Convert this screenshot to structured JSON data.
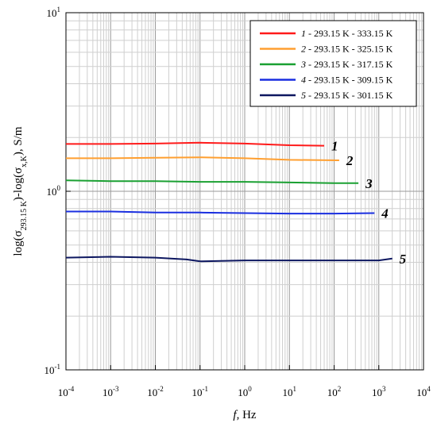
{
  "chart_data": {
    "type": "line",
    "xscale": "log",
    "yscale": "log",
    "xlim": [
      0.0001,
      10000
    ],
    "ylim": [
      0.1,
      10
    ],
    "grid": true,
    "legend_position": "top-right",
    "xlabel": {
      "italic": "f",
      "rest": ", Hz"
    },
    "ylabel": {
      "main": "log(σ",
      "sub1": "293.15 K",
      "mid": ")-log(σ",
      "sub2": "x,K",
      "end": "), S/m"
    },
    "x_ticks": [
      {
        "base": "10",
        "exp": "-4",
        "value": 0.0001
      },
      {
        "base": "10",
        "exp": "-3",
        "value": 0.001
      },
      {
        "base": "10",
        "exp": "-2",
        "value": 0.01
      },
      {
        "base": "10",
        "exp": "-1",
        "value": 0.1
      },
      {
        "base": "10",
        "exp": "0",
        "value": 1
      },
      {
        "base": "10",
        "exp": "1",
        "value": 10
      },
      {
        "base": "10",
        "exp": "2",
        "value": 100
      },
      {
        "base": "10",
        "exp": "3",
        "value": 1000
      },
      {
        "base": "10",
        "exp": "4",
        "value": 10000
      }
    ],
    "y_ticks": [
      {
        "base": "10",
        "exp": "-1",
        "value": 0.1
      },
      {
        "base": "10",
        "exp": "0",
        "value": 1
      },
      {
        "base": "10",
        "exp": "1",
        "value": 10
      }
    ],
    "series": [
      {
        "num": "1",
        "name": " - 293.15 K - 333.15 K",
        "color": "#ff1a1a",
        "label": "1",
        "x": [
          0.0001,
          0.001,
          0.01,
          0.1,
          1,
          10,
          60
        ],
        "y": [
          1.84,
          1.84,
          1.85,
          1.87,
          1.85,
          1.81,
          1.8
        ]
      },
      {
        "num": "2",
        "name": " - 293.15 K - 325.15 K",
        "color": "#ff9f30",
        "label": "2",
        "x": [
          0.0001,
          0.001,
          0.01,
          0.1,
          1,
          10,
          130
        ],
        "y": [
          1.53,
          1.53,
          1.54,
          1.55,
          1.53,
          1.5,
          1.49
        ]
      },
      {
        "num": "3",
        "name": " - 293.15 K - 317.15 K",
        "color": "#1aa032",
        "label": "3",
        "x": [
          0.0001,
          0.001,
          0.01,
          0.1,
          1,
          10,
          100,
          350
        ],
        "y": [
          1.15,
          1.14,
          1.14,
          1.13,
          1.13,
          1.12,
          1.11,
          1.11
        ]
      },
      {
        "num": "4",
        "name": " - 293.15 K - 309.15 K",
        "color": "#1a2fe0",
        "label": "4",
        "x": [
          0.0001,
          0.001,
          0.01,
          0.1,
          1,
          10,
          100,
          800
        ],
        "y": [
          0.77,
          0.77,
          0.76,
          0.76,
          0.755,
          0.75,
          0.75,
          0.755
        ]
      },
      {
        "num": "5",
        "name": " - 293.15 K - 301.15 K",
        "color": "#0d1760",
        "label": "5",
        "x": [
          0.0001,
          0.001,
          0.01,
          0.05,
          0.1,
          1,
          10,
          100,
          1000,
          2000
        ],
        "y": [
          0.425,
          0.43,
          0.425,
          0.415,
          0.405,
          0.41,
          0.41,
          0.41,
          0.41,
          0.42
        ]
      }
    ]
  }
}
